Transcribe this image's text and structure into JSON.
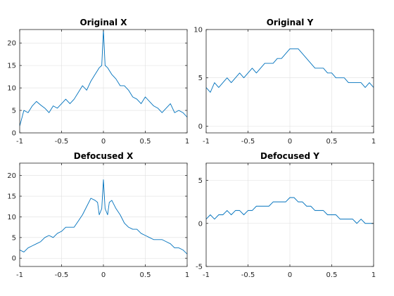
{
  "chart_data": [
    {
      "type": "line",
      "title": "Original X",
      "xlim": [
        -1,
        1
      ],
      "ylim": [
        0,
        23
      ],
      "xticks": [
        -1,
        -0.5,
        0,
        0.5,
        1
      ],
      "yticks": [
        0,
        5,
        10,
        15,
        20
      ],
      "xticklabels": [
        "-1",
        "-0.5",
        "0",
        "0.5",
        "1"
      ],
      "yticklabels": [
        "0",
        "5",
        "10",
        "15",
        "20"
      ],
      "grid": true,
      "series": [
        {
          "color": "#0072bd",
          "x": [
            -1,
            -0.95,
            -0.9,
            -0.85,
            -0.8,
            -0.75,
            -0.7,
            -0.65,
            -0.6,
            -0.55,
            -0.5,
            -0.45,
            -0.4,
            -0.35,
            -0.3,
            -0.25,
            -0.2,
            -0.15,
            -0.1,
            -0.05,
            -0.02,
            0,
            0.02,
            0.05,
            0.1,
            0.15,
            0.2,
            0.25,
            0.3,
            0.35,
            0.4,
            0.45,
            0.5,
            0.55,
            0.6,
            0.65,
            0.7,
            0.75,
            0.8,
            0.85,
            0.9,
            0.95,
            1
          ],
          "y": [
            1.5,
            5,
            4.5,
            6,
            7,
            6.2,
            5.5,
            4.5,
            6,
            5.5,
            6.5,
            7.5,
            6.5,
            7.5,
            9,
            10.5,
            9.5,
            11.5,
            13,
            14.5,
            15,
            23,
            15,
            14.5,
            13,
            12,
            10.5,
            10.5,
            9.5,
            8,
            7.5,
            6.5,
            8,
            7,
            6,
            5.5,
            4.5,
            5.5,
            6.5,
            4.5,
            5,
            4.5,
            3.5
          ]
        }
      ]
    },
    {
      "type": "line",
      "title": "Original Y",
      "xlim": [
        -1,
        1
      ],
      "ylim": [
        -0.7,
        10
      ],
      "xticks": [
        -1,
        -0.5,
        0,
        0.5,
        1
      ],
      "yticks": [
        0,
        5,
        10
      ],
      "xticklabels": [
        "-1",
        "-0.5",
        "0",
        "0.5",
        "1"
      ],
      "yticklabels": [
        "0",
        "5",
        "10"
      ],
      "grid": true,
      "series": [
        {
          "color": "#0072bd",
          "x": [
            -1,
            -0.95,
            -0.9,
            -0.85,
            -0.8,
            -0.75,
            -0.7,
            -0.65,
            -0.6,
            -0.55,
            -0.5,
            -0.45,
            -0.4,
            -0.35,
            -0.3,
            -0.25,
            -0.2,
            -0.15,
            -0.1,
            -0.05,
            0,
            0.05,
            0.1,
            0.15,
            0.2,
            0.25,
            0.3,
            0.35,
            0.4,
            0.45,
            0.5,
            0.55,
            0.6,
            0.65,
            0.7,
            0.75,
            0.8,
            0.85,
            0.9,
            0.95,
            1
          ],
          "y": [
            4,
            3.5,
            4.5,
            4,
            4.5,
            5,
            4.5,
            5,
            5.5,
            5,
            5.5,
            6,
            5.5,
            6,
            6.5,
            6.5,
            6.5,
            7,
            7,
            7.5,
            8,
            8,
            8,
            7.5,
            7,
            6.5,
            6,
            6,
            6,
            5.5,
            5.5,
            5,
            5,
            5,
            4.5,
            4.5,
            4.5,
            4.5,
            4,
            4.5,
            4
          ]
        }
      ]
    },
    {
      "type": "line",
      "title": "Defocused X",
      "xlim": [
        -1,
        1
      ],
      "ylim": [
        -2,
        23
      ],
      "xticks": [
        -1,
        -0.5,
        0,
        0.5,
        1
      ],
      "yticks": [
        0,
        5,
        10,
        15,
        20
      ],
      "xticklabels": [
        "-1",
        "-0.5",
        "0",
        "0.5",
        "1"
      ],
      "yticklabels": [
        "0",
        "5",
        "10",
        "15",
        "20"
      ],
      "grid": true,
      "series": [
        {
          "color": "#0072bd",
          "x": [
            -1,
            -0.95,
            -0.9,
            -0.85,
            -0.8,
            -0.75,
            -0.7,
            -0.65,
            -0.6,
            -0.55,
            -0.5,
            -0.45,
            -0.4,
            -0.35,
            -0.3,
            -0.25,
            -0.2,
            -0.15,
            -0.1,
            -0.07,
            -0.05,
            -0.02,
            0,
            0.02,
            0.05,
            0.07,
            0.1,
            0.15,
            0.2,
            0.25,
            0.3,
            0.35,
            0.4,
            0.45,
            0.5,
            0.55,
            0.6,
            0.65,
            0.7,
            0.75,
            0.8,
            0.85,
            0.9,
            0.95,
            1
          ],
          "y": [
            2,
            1.5,
            2.5,
            3,
            3.5,
            4,
            5,
            5.5,
            5,
            6,
            6.5,
            7.5,
            7.5,
            7.5,
            9,
            10.5,
            12.5,
            14.5,
            14,
            13.5,
            10.5,
            12,
            19,
            12,
            10.5,
            13.5,
            14,
            12,
            10.5,
            8.5,
            7.5,
            7,
            7,
            6,
            5.5,
            5,
            4.5,
            4.5,
            4.5,
            4,
            3.5,
            2.5,
            2.5,
            2,
            1
          ]
        }
      ]
    },
    {
      "type": "line",
      "title": "Defocused Y",
      "xlim": [
        -1,
        1
      ],
      "ylim": [
        -5,
        7
      ],
      "xticks": [
        -1,
        -0.5,
        0,
        0.5,
        1
      ],
      "yticks": [
        -5,
        0,
        5
      ],
      "xticklabels": [
        "-1",
        "-0.5",
        "0",
        "0.5",
        "1"
      ],
      "yticklabels": [
        "-5",
        "0",
        "5"
      ],
      "grid": true,
      "series": [
        {
          "color": "#0072bd",
          "x": [
            -1,
            -0.95,
            -0.9,
            -0.85,
            -0.8,
            -0.75,
            -0.7,
            -0.65,
            -0.6,
            -0.55,
            -0.5,
            -0.45,
            -0.4,
            -0.35,
            -0.3,
            -0.25,
            -0.2,
            -0.15,
            -0.1,
            -0.05,
            0,
            0.05,
            0.1,
            0.15,
            0.2,
            0.25,
            0.3,
            0.35,
            0.4,
            0.45,
            0.5,
            0.55,
            0.6,
            0.65,
            0.7,
            0.75,
            0.8,
            0.85,
            0.9,
            0.95,
            1
          ],
          "y": [
            0.5,
            1,
            0.5,
            1,
            1,
            1.5,
            1,
            1.5,
            1.5,
            1,
            1.5,
            1.5,
            2,
            2,
            2,
            2,
            2.5,
            2.5,
            2.5,
            2.5,
            3,
            3,
            2.5,
            2.5,
            2,
            2,
            1.5,
            1.5,
            1.5,
            1,
            1,
            1,
            0.5,
            0.5,
            0.5,
            0.5,
            0,
            0.5,
            0,
            0,
            0
          ]
        }
      ]
    }
  ]
}
